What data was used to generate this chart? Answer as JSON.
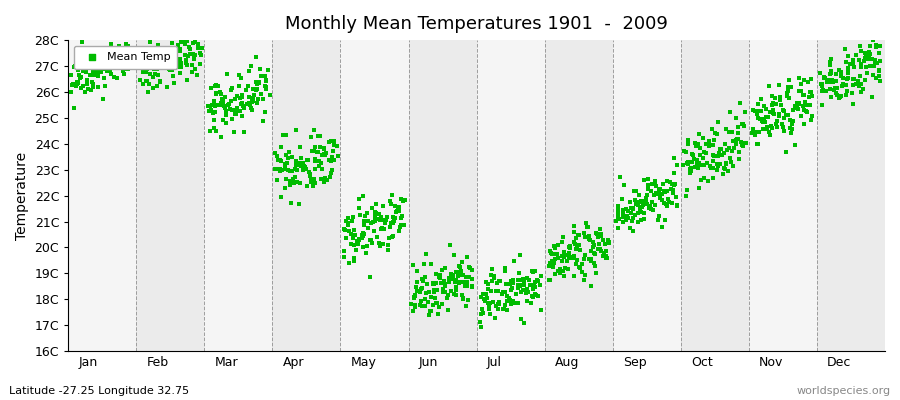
{
  "title": "Monthly Mean Temperatures 1901  -  2009",
  "ylabel": "Temperature",
  "xlabel_bottom": "Latitude -27.25 Longitude 32.75",
  "watermark": "worldspecies.org",
  "ylim": [
    16,
    28
  ],
  "ytick_labels": [
    "16C",
    "17C",
    "18C",
    "19C",
    "20C",
    "21C",
    "22C",
    "23C",
    "24C",
    "25C",
    "26C",
    "27C",
    "28C"
  ],
  "ytick_values": [
    16,
    17,
    18,
    19,
    20,
    21,
    22,
    23,
    24,
    25,
    26,
    27,
    28
  ],
  "months": [
    "Jan",
    "Feb",
    "Mar",
    "Apr",
    "May",
    "Jun",
    "Jul",
    "Aug",
    "Sep",
    "Oct",
    "Nov",
    "Dec"
  ],
  "marker_color": "#00BB00",
  "legend_label": "Mean Temp",
  "background_color": "#FFFFFF",
  "band_color_odd": "#EBEBEB",
  "band_color_even": "#F5F5F5",
  "num_years": 109,
  "mean_temps": [
    26.5,
    26.7,
    25.3,
    22.8,
    20.4,
    18.1,
    17.9,
    19.3,
    21.3,
    23.3,
    24.8,
    26.3
  ],
  "std_temps": [
    0.45,
    0.45,
    0.55,
    0.55,
    0.55,
    0.5,
    0.5,
    0.5,
    0.5,
    0.55,
    0.55,
    0.5
  ],
  "trend": 0.008
}
